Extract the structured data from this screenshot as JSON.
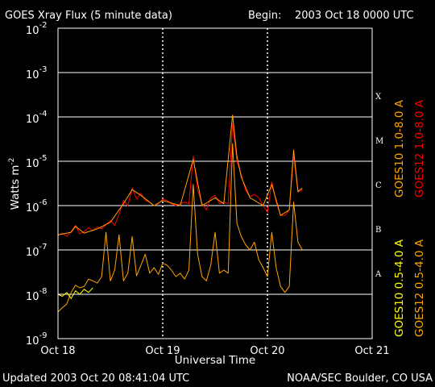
{
  "header": {
    "title": "GOES Xray Flux (5 minute data)",
    "begin_label": "Begin:",
    "begin_value": "2003 Oct 18 0000 UTC"
  },
  "footer": {
    "updated": "Updated 2003 Oct 20 08:41:04 UTC",
    "source": "NOAA/SEC Boulder, CO USA"
  },
  "colors": {
    "goes10_long": "#ffa500",
    "goes12_long": "#ff0000",
    "goes10_short": "#ffff00",
    "goes12_short": "#ffa500",
    "background": "#000000",
    "frame": "#ffffff"
  },
  "chart_data": {
    "type": "line",
    "title": "GOES Xray Flux (5 minute data)",
    "xlabel": "Universal Time",
    "ylabel": "Watts m-2",
    "y_scale": "log",
    "ylim": [
      1e-09,
      0.01
    ],
    "xlim": [
      "2003-10-18 00:00",
      "2003-10-21 00:00"
    ],
    "x_ticks": [
      "Oct 18",
      "Oct 19",
      "Oct 20",
      "Oct 21"
    ],
    "y_ticks": [
      {
        "base": "10",
        "exp": "-2"
      },
      {
        "base": "10",
        "exp": "-3"
      },
      {
        "base": "10",
        "exp": "-4"
      },
      {
        "base": "10",
        "exp": "-5"
      },
      {
        "base": "10",
        "exp": "-6"
      },
      {
        "base": "10",
        "exp": "-7"
      },
      {
        "base": "10",
        "exp": "-8"
      },
      {
        "base": "10",
        "exp": "-9"
      }
    ],
    "flare_classes": [
      {
        "label": "X",
        "at": 0.0001
      },
      {
        "label": "M",
        "at": 1e-05
      },
      {
        "label": "C",
        "at": 1e-06
      },
      {
        "label": "B",
        "at": 1e-07
      },
      {
        "label": "A",
        "at": 1e-08
      }
    ],
    "legend": {
      "left_column": [
        "GOES10 0.5-4.0 A",
        "GOES10 1.0-8.0 A"
      ],
      "right_column": [
        "GOES12 0.5-4.0 A",
        "GOES12 1.0-8.0 A"
      ]
    },
    "series": [
      {
        "name": "GOES12 1.0-8.0 A",
        "color": "#ff0000",
        "points": [
          [
            "2003-10-18 00:00",
            2.1e-07
          ],
          [
            "2003-10-18 01:00",
            2.4e-07
          ],
          [
            "2003-10-18 02:00",
            2e-07
          ],
          [
            "2003-10-18 03:00",
            2.6e-07
          ],
          [
            "2003-10-18 04:00",
            3.6e-07
          ],
          [
            "2003-10-18 05:00",
            2.3e-07
          ],
          [
            "2003-10-18 06:00",
            2.6e-07
          ],
          [
            "2003-10-18 07:00",
            3.2e-07
          ],
          [
            "2003-10-18 08:00",
            2.7e-07
          ],
          [
            "2003-10-18 09:00",
            3.3e-07
          ],
          [
            "2003-10-18 10:00",
            3e-07
          ],
          [
            "2003-10-18 11:00",
            3.7e-07
          ],
          [
            "2003-10-18 12:00",
            4.6e-07
          ],
          [
            "2003-10-18 13:00",
            3.6e-07
          ],
          [
            "2003-10-18 14:00",
            6.3e-07
          ],
          [
            "2003-10-18 15:00",
            1.3e-06
          ],
          [
            "2003-10-18 16:00",
            1e-06
          ],
          [
            "2003-10-18 17:00",
            2.5e-06
          ],
          [
            "2003-10-18 18:00",
            1.4e-06
          ],
          [
            "2003-10-18 19:00",
            1.9e-06
          ],
          [
            "2003-10-18 20:00",
            1.3e-06
          ],
          [
            "2003-10-18 21:00",
            1.2e-06
          ],
          [
            "2003-10-18 22:00",
            1e-06
          ],
          [
            "2003-10-18 23:00",
            1.1e-06
          ],
          [
            "2003-10-19 00:00",
            1.4e-06
          ],
          [
            "2003-10-19 01:00",
            1.3e-06
          ],
          [
            "2003-10-19 02:00",
            1.1e-06
          ],
          [
            "2003-10-19 03:00",
            1e-06
          ],
          [
            "2003-10-19 04:00",
            1.1e-06
          ],
          [
            "2003-10-19 05:00",
            1.2e-06
          ],
          [
            "2003-10-19 06:00",
            1.1e-06
          ],
          [
            "2003-10-19 07:00",
            1.3e-05
          ],
          [
            "2003-10-19 08:00",
            2.3e-06
          ],
          [
            "2003-10-19 09:00",
            1.1e-06
          ],
          [
            "2003-10-19 10:00",
            8e-07
          ],
          [
            "2003-10-19 11:00",
            1.5e-06
          ],
          [
            "2003-10-19 12:00",
            1.7e-06
          ],
          [
            "2003-10-19 13:00",
            1.1e-06
          ],
          [
            "2003-10-19 14:00",
            1.2e-06
          ],
          [
            "2003-10-19 15:00",
            1.1e-06
          ],
          [
            "2003-10-19 16:00",
            7e-05
          ],
          [
            "2003-10-19 17:00",
            1e-05
          ],
          [
            "2003-10-19 18:00",
            5e-06
          ],
          [
            "2003-10-19 19:00",
            2.2e-06
          ],
          [
            "2003-10-19 20:00",
            1.6e-06
          ],
          [
            "2003-10-19 21:00",
            1.8e-06
          ],
          [
            "2003-10-19 22:00",
            1.5e-06
          ],
          [
            "2003-10-19 23:00",
            1e-06
          ],
          [
            "2003-10-20 00:00",
            7e-07
          ],
          [
            "2003-10-20 01:00",
            3.5e-06
          ],
          [
            "2003-10-20 02:00",
            1.2e-06
          ],
          [
            "2003-10-20 03:00",
            6e-07
          ],
          [
            "2003-10-20 04:00",
            6e-07
          ],
          [
            "2003-10-20 05:00",
            8e-07
          ],
          [
            "2003-10-20 06:00",
            1.3e-05
          ],
          [
            "2003-10-20 07:00",
            2e-06
          ],
          [
            "2003-10-20 08:00",
            2.3e-06
          ]
        ]
      },
      {
        "name": "GOES10 1.0-8.0 A",
        "color": "#ffa500",
        "points": [
          [
            "2003-10-18 00:00",
            2.2e-07
          ],
          [
            "2003-10-18 03:00",
            2.5e-07
          ],
          [
            "2003-10-18 04:00",
            3.4e-07
          ],
          [
            "2003-10-18 06:00",
            2.4e-07
          ],
          [
            "2003-10-18 09:00",
            3e-07
          ],
          [
            "2003-10-18 12:00",
            4.2e-07
          ],
          [
            "2003-10-18 15:00",
            1.1e-06
          ],
          [
            "2003-10-18 17:00",
            2.3e-06
          ],
          [
            "2003-10-18 19:00",
            1.7e-06
          ],
          [
            "2003-10-18 22:00",
            1e-06
          ],
          [
            "2003-10-19 00:00",
            1.3e-06
          ],
          [
            "2003-10-19 04:00",
            1e-06
          ],
          [
            "2003-10-19 07:00",
            1.1e-05
          ],
          [
            "2003-10-19 09:00",
            1e-06
          ],
          [
            "2003-10-19 12:00",
            1.5e-06
          ],
          [
            "2003-10-19 14:00",
            1.1e-06
          ],
          [
            "2003-10-19 16:00",
            0.00011
          ],
          [
            "2003-10-19 17:00",
            1.3e-05
          ],
          [
            "2003-10-19 18:00",
            4.4e-06
          ],
          [
            "2003-10-19 20:00",
            1.5e-06
          ],
          [
            "2003-10-19 23:00",
            1e-06
          ],
          [
            "2003-10-20 01:00",
            3e-06
          ],
          [
            "2003-10-20 03:00",
            6e-07
          ],
          [
            "2003-10-20 05:00",
            8e-07
          ],
          [
            "2003-10-20 06:00",
            1.8e-05
          ],
          [
            "2003-10-20 07:00",
            2.1e-06
          ],
          [
            "2003-10-20 08:00",
            2.5e-06
          ]
        ]
      },
      {
        "name": "GOES12 0.5-4.0 A",
        "color": "#ffa500",
        "points": [
          [
            "2003-10-18 00:00",
            4e-09
          ],
          [
            "2003-10-18 01:00",
            5e-09
          ],
          [
            "2003-10-18 02:00",
            6e-09
          ],
          [
            "2003-10-18 03:00",
            1.1e-08
          ],
          [
            "2003-10-18 04:00",
            1.6e-08
          ],
          [
            "2003-10-18 05:00",
            1.4e-08
          ],
          [
            "2003-10-18 06:00",
            1.5e-08
          ],
          [
            "2003-10-18 07:00",
            2.2e-08
          ],
          [
            "2003-10-18 08:00",
            2e-08
          ],
          [
            "2003-10-18 09:00",
            1.8e-08
          ],
          [
            "2003-10-18 10:00",
            2.5e-08
          ],
          [
            "2003-10-18 11:00",
            2.5e-07
          ],
          [
            "2003-10-18 12:00",
            2e-08
          ],
          [
            "2003-10-18 13:00",
            3.5e-08
          ],
          [
            "2003-10-18 14:00",
            2.2e-07
          ],
          [
            "2003-10-18 15:00",
            2e-08
          ],
          [
            "2003-10-18 16:00",
            3e-08
          ],
          [
            "2003-10-18 17:00",
            2e-07
          ],
          [
            "2003-10-18 18:00",
            2.6e-08
          ],
          [
            "2003-10-18 19:00",
            4.5e-08
          ],
          [
            "2003-10-18 20:00",
            8e-08
          ],
          [
            "2003-10-18 21:00",
            3e-08
          ],
          [
            "2003-10-18 22:00",
            4e-08
          ],
          [
            "2003-10-18 23:00",
            2.8e-08
          ],
          [
            "2003-10-19 00:00",
            5e-08
          ],
          [
            "2003-10-19 01:00",
            4.5e-08
          ],
          [
            "2003-10-19 02:00",
            3.5e-08
          ],
          [
            "2003-10-19 03:00",
            2.5e-08
          ],
          [
            "2003-10-19 04:00",
            3e-08
          ],
          [
            "2003-10-19 05:00",
            2.2e-08
          ],
          [
            "2003-10-19 06:00",
            3.5e-08
          ],
          [
            "2003-10-19 07:00",
            3e-06
          ],
          [
            "2003-10-19 08:00",
            8e-08
          ],
          [
            "2003-10-19 09:00",
            2.5e-08
          ],
          [
            "2003-10-19 10:00",
            2e-08
          ],
          [
            "2003-10-19 11:00",
            4.5e-08
          ],
          [
            "2003-10-19 12:00",
            2.5e-07
          ],
          [
            "2003-10-19 13:00",
            3e-08
          ],
          [
            "2003-10-19 14:00",
            3.5e-08
          ],
          [
            "2003-10-19 15:00",
            3e-08
          ],
          [
            "2003-10-19 16:00",
            2.5e-05
          ],
          [
            "2003-10-19 17:00",
            4e-07
          ],
          [
            "2003-10-19 18:00",
            2e-07
          ],
          [
            "2003-10-19 19:00",
            1.3e-07
          ],
          [
            "2003-10-19 20:00",
            1e-07
          ],
          [
            "2003-10-19 21:00",
            1.5e-07
          ],
          [
            "2003-10-19 22:00",
            6e-08
          ],
          [
            "2003-10-19 23:00",
            4e-08
          ],
          [
            "2003-10-20 00:00",
            2.5e-08
          ],
          [
            "2003-10-20 01:00",
            2.5e-07
          ],
          [
            "2003-10-20 02:00",
            4e-08
          ],
          [
            "2003-10-20 03:00",
            1.5e-08
          ],
          [
            "2003-10-20 04:00",
            1.1e-08
          ],
          [
            "2003-10-20 05:00",
            1.5e-08
          ],
          [
            "2003-10-20 06:00",
            1.2e-06
          ],
          [
            "2003-10-20 07:00",
            1.5e-07
          ],
          [
            "2003-10-20 08:00",
            1e-07
          ]
        ]
      },
      {
        "name": "GOES10 0.5-4.0 A",
        "color": "#ffff00",
        "points": [
          [
            "2003-10-18 00:00",
            1e-08
          ],
          [
            "2003-10-18 01:00",
            9e-09
          ],
          [
            "2003-10-18 02:00",
            1.1e-08
          ],
          [
            "2003-10-18 03:00",
            8e-09
          ],
          [
            "2003-10-18 04:00",
            1.2e-08
          ],
          [
            "2003-10-18 05:00",
            1e-08
          ],
          [
            "2003-10-18 06:00",
            1.3e-08
          ],
          [
            "2003-10-18 07:00",
            1.1e-08
          ],
          [
            "2003-10-18 08:00",
            1.4e-08
          ]
        ]
      }
    ]
  }
}
